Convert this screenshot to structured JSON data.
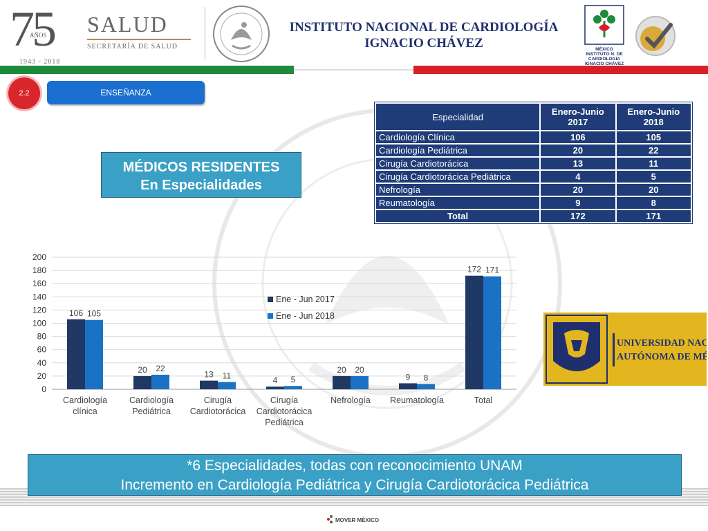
{
  "header": {
    "anniv_number": "75",
    "anniv_word": "AÑOS",
    "anniv_years": "1943 - 2018",
    "salud_word": "SALUD",
    "salud_sub": "SECRETARÍA DE SALUD",
    "institute_line1": "INSTITUTO NACIONAL DE CARDIOLOGÍA",
    "institute_line2": "IGNACIO CHÁVEZ",
    "inst_logo_text": [
      "MÉXICO",
      "INSTITUTO N. DE",
      "CARDIOLOGIA",
      "IGNACIO CHÁVEZ"
    ]
  },
  "section": {
    "number": "2.2",
    "label": "ENSEÑANZA"
  },
  "residentes": {
    "line1": "MÉDICOS RESIDENTES",
    "line2": "En Especialidades"
  },
  "table": {
    "headers": {
      "especialidad": "Especialidad",
      "col1": "Enero-Junio 2017",
      "col2": "Enero-Junio 2018"
    },
    "rows": [
      {
        "esp": "Cardiología Clínica",
        "v2017": "106",
        "v2018": "105"
      },
      {
        "esp": "Cardiología Pediátrica",
        "v2017": "20",
        "v2018": "22"
      },
      {
        "esp": "Cirugía Cardiotorácica",
        "v2017": "13",
        "v2018": "11"
      },
      {
        "esp": "Cirugía Cardiotorácica Pediátrica",
        "v2017": "4",
        "v2018": "5"
      },
      {
        "esp": "Nefrología",
        "v2017": "20",
        "v2018": "20"
      },
      {
        "esp": "Reumatología",
        "v2017": "9",
        "v2018": "8"
      }
    ],
    "total": {
      "esp": "Total",
      "v2017": "172",
      "v2018": "171"
    }
  },
  "chart_data": {
    "type": "bar",
    "categories": [
      [
        "Cardiología",
        "clínica"
      ],
      [
        "Cardiología",
        "Pediátrica"
      ],
      [
        "Cirugía",
        "Cardiotorácica"
      ],
      [
        "Cirugía",
        "Cardiotorácica",
        "Pediátrica"
      ],
      [
        "Nefrología"
      ],
      [
        "Reumatología"
      ],
      [
        "Total"
      ]
    ],
    "series": [
      {
        "name": "Ene - Jun 2017",
        "values": [
          106,
          20,
          13,
          4,
          20,
          9,
          172
        ],
        "color": "#1f3864"
      },
      {
        "name": "Ene - Jun 2018",
        "values": [
          105,
          22,
          11,
          5,
          20,
          8,
          171
        ],
        "color": "#1b72c4"
      }
    ],
    "ylim": [
      0,
      200
    ],
    "yticks": [
      0,
      20,
      40,
      60,
      80,
      100,
      120,
      140,
      160,
      180,
      200
    ],
    "legend_position": "center",
    "grid": true,
    "data_labels": true
  },
  "unam": {
    "line1": "UNIVERSIDAD NACIONAL",
    "line2": "AUTÓNOMA DE MÉXICO",
    "seal_text": "UNIVERSIDAD NACIONAL AUTONOMA DE MEXICO"
  },
  "footer": {
    "line1": "*6 Especialidades, todas con reconocimiento UNAM",
    "line2": "Incremento en Cardiología Pediátrica y Cirugía Cardiotorácica Pediátrica",
    "mover_text": "MOVER MÉXICO"
  },
  "colors": {
    "navy": "#1f3c78",
    "teal": "#3ba0c5",
    "green": "#1d8a3c",
    "red": "#d81f26",
    "unam_gold": "#e3b620"
  }
}
